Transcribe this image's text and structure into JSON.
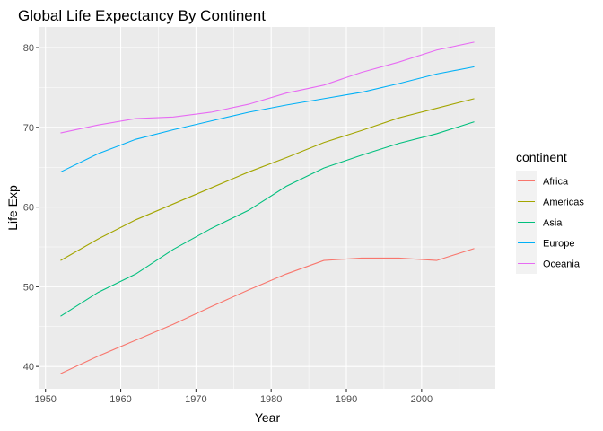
{
  "chart_data": {
    "type": "line",
    "title": "Global Life Expectancy By Continent",
    "xlabel": "Year",
    "ylabel": "Life Exp",
    "xlim": [
      1949.2,
      2009.8
    ],
    "ylim": [
      37.2,
      82.6
    ],
    "x_ticks": [
      1950,
      1960,
      1970,
      1980,
      1990,
      2000
    ],
    "y_ticks": [
      40,
      50,
      60,
      70,
      80
    ],
    "grid": true,
    "legend_title": "continent",
    "legend_position": "right",
    "x": [
      1952,
      1957,
      1962,
      1967,
      1972,
      1977,
      1982,
      1987,
      1992,
      1997,
      2002,
      2007
    ],
    "series": [
      {
        "name": "Africa",
        "color": "#F8766D",
        "values": [
          39.1,
          41.3,
          43.3,
          45.3,
          47.5,
          49.6,
          51.6,
          53.3,
          53.6,
          53.6,
          53.3,
          54.8
        ]
      },
      {
        "name": "Americas",
        "color": "#A3A500",
        "values": [
          53.3,
          56.0,
          58.4,
          60.4,
          62.4,
          64.4,
          66.2,
          68.1,
          69.6,
          71.2,
          72.4,
          73.6
        ]
      },
      {
        "name": "Asia",
        "color": "#00BF7D",
        "values": [
          46.3,
          49.3,
          51.6,
          54.7,
          57.3,
          59.6,
          62.6,
          64.9,
          66.5,
          68.0,
          69.2,
          70.7
        ]
      },
      {
        "name": "Europe",
        "color": "#00B0F6",
        "values": [
          64.4,
          66.7,
          68.5,
          69.7,
          70.8,
          71.9,
          72.8,
          73.6,
          74.4,
          75.5,
          76.7,
          77.6
        ]
      },
      {
        "name": "Oceania",
        "color": "#E76BF3",
        "values": [
          69.3,
          70.3,
          71.1,
          71.3,
          71.9,
          72.9,
          74.3,
          75.3,
          76.9,
          78.2,
          79.7,
          80.7
        ]
      }
    ]
  }
}
